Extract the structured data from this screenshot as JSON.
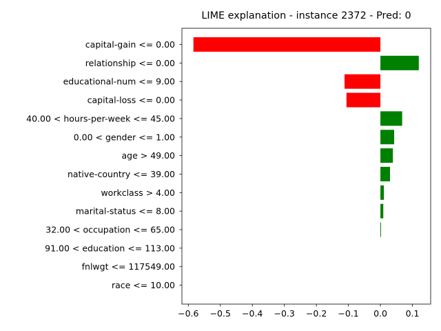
{
  "chart_data": {
    "type": "bar",
    "orientation": "horizontal",
    "title": "LIME explanation - instance 2372 - Pred: 0",
    "xlabel": "",
    "ylabel": "",
    "xlim": [
      -0.62,
      0.157
    ],
    "xticks": [
      -0.6,
      -0.5,
      -0.4,
      -0.3,
      -0.2,
      -0.1,
      0.0,
      0.1
    ],
    "xtick_labels": [
      "−0.6",
      "−0.5",
      "−0.4",
      "−0.3",
      "−0.2",
      "−0.1",
      "0.0",
      "0.1"
    ],
    "grid": false,
    "legend": "none",
    "categories": [
      "capital-gain <= 0.00",
      "relationship <= 0.00",
      "educational-num <= 9.00",
      "capital-loss <= 0.00",
      "40.00 < hours-per-week <= 45.00",
      "0.00 < gender <= 1.00",
      "age > 49.00",
      "native-country <= 39.00",
      "workclass > 4.00",
      "marital-status <= 8.00",
      "32.00 < occupation <= 65.00",
      "91.00 < education <= 113.00",
      "fnlwgt <= 117549.00",
      "race <= 10.00"
    ],
    "values": [
      -0.584,
      0.12,
      -0.112,
      -0.106,
      0.068,
      0.043,
      0.039,
      0.03,
      0.011,
      0.009,
      0.002,
      0.0,
      0.0,
      0.0
    ],
    "colors": {
      "positive": "#008000",
      "negative": "#ff0000"
    }
  }
}
